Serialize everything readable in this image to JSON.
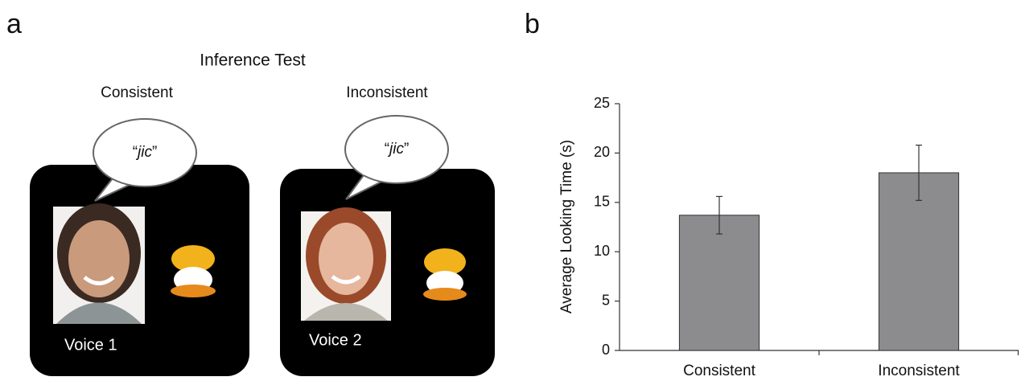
{
  "panel_labels": [
    "a",
    "b"
  ],
  "diagram": {
    "title": "Inference Test",
    "conditions": [
      {
        "label": "Consistent",
        "quote_open": "“",
        "word": "jic",
        "quote_close": "”",
        "voice": "Voice 1"
      },
      {
        "label": "Inconsistent",
        "quote_open": "“",
        "word": "jic",
        "quote_close": "”",
        "voice": "Voice 2"
      }
    ]
  },
  "chart_data": {
    "type": "bar",
    "y_label": "Average Looking Time (s)",
    "categories": [
      "Consistent",
      "Inconsistent"
    ],
    "values": [
      13.7,
      18.0
    ],
    "errors": [
      1.9,
      2.8
    ],
    "color": "#8c8c8e",
    "ylim": [
      0,
      25
    ],
    "yticks": [
      0,
      5,
      10,
      15,
      20,
      25
    ],
    "grid": false
  }
}
